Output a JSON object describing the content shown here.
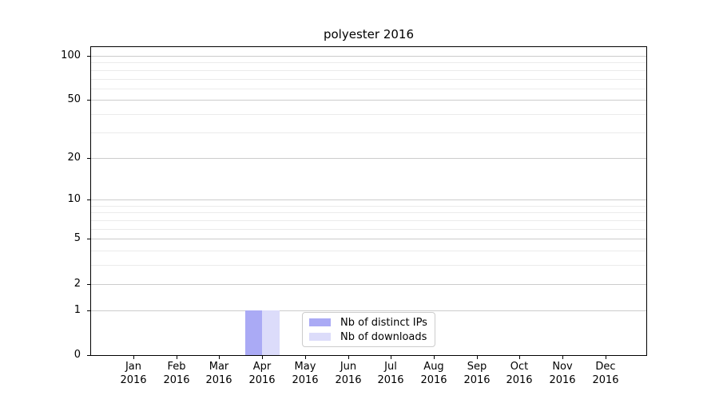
{
  "chart_data": {
    "type": "bar",
    "title": "polyester 2016",
    "categories": [
      "Jan 2016",
      "Feb 2016",
      "Mar 2016",
      "Apr 2016",
      "May 2016",
      "Jun 2016",
      "Jul 2016",
      "Aug 2016",
      "Sep 2016",
      "Oct 2016",
      "Nov 2016",
      "Dec 2016"
    ],
    "series": [
      {
        "name": "Nb of distinct IPs",
        "color": "#aaaaf5",
        "values": [
          0,
          0,
          0,
          1,
          0,
          0,
          0,
          0,
          0,
          0,
          0,
          0
        ]
      },
      {
        "name": "Nb of downloads",
        "color": "#dcdcfa",
        "values": [
          0,
          0,
          0,
          1,
          0,
          0,
          0,
          0,
          0,
          0,
          0,
          0
        ]
      }
    ],
    "xlabel": "",
    "ylabel": "",
    "yscale": "log1p",
    "ylim": [
      0,
      116
    ],
    "y_major_ticks": [
      0,
      1,
      2,
      5,
      10,
      20,
      50,
      100
    ],
    "y_minor_ticks": [
      3,
      4,
      6,
      7,
      8,
      9,
      30,
      40,
      60,
      70,
      80,
      90
    ],
    "grid": true,
    "legend": {
      "position": "lower center"
    },
    "colors": {
      "grid_major": "#cccccc",
      "grid_minor": "#ebebeb",
      "axis": "#000000",
      "text": "#000000",
      "background": "#ffffff"
    }
  }
}
